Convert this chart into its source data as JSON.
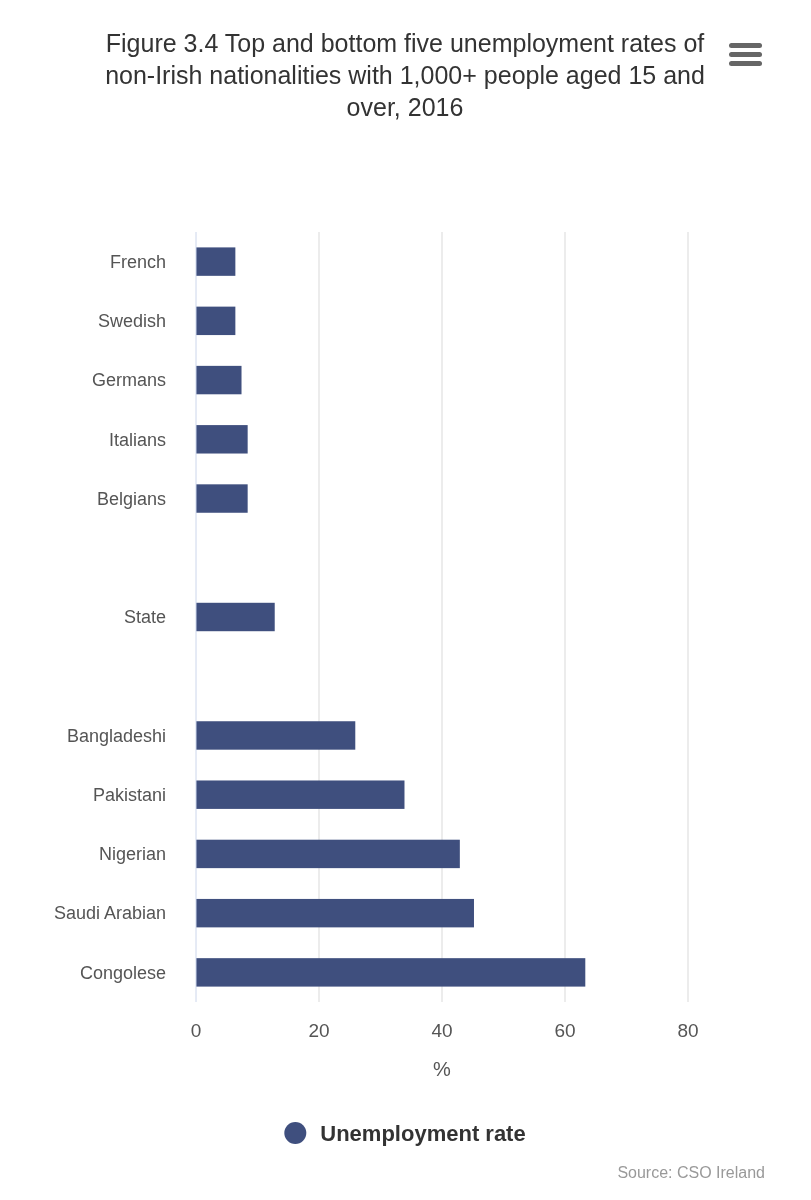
{
  "chart_data": {
    "type": "bar",
    "orientation": "horizontal",
    "title": "Figure 3.4 Top and bottom five unemployment rates of non-Irish nationalities with 1,000+ people aged 15 and over, 2016",
    "xlabel": "%",
    "categories": [
      "French",
      "Swedish",
      "Germans",
      "Italians",
      "Belgians",
      null,
      "State",
      null,
      "Bangladeshi",
      "Pakistani",
      "Nigerian",
      "Saudi Arabian",
      "Congolese"
    ],
    "series": [
      {
        "name": "Unemployment rate",
        "color": "#3f4f7e",
        "values": [
          6.4,
          6.4,
          7.4,
          8.4,
          8.4,
          null,
          12.8,
          null,
          25.9,
          33.9,
          42.9,
          45.2,
          63.3
        ]
      }
    ],
    "xlim": [
      0,
      80
    ],
    "xticks": [
      0,
      20,
      40,
      60,
      80
    ],
    "grid": "x",
    "legend": "bottom",
    "marker": "circle",
    "annotations": [
      "Source: CSO Ireland"
    ]
  }
}
